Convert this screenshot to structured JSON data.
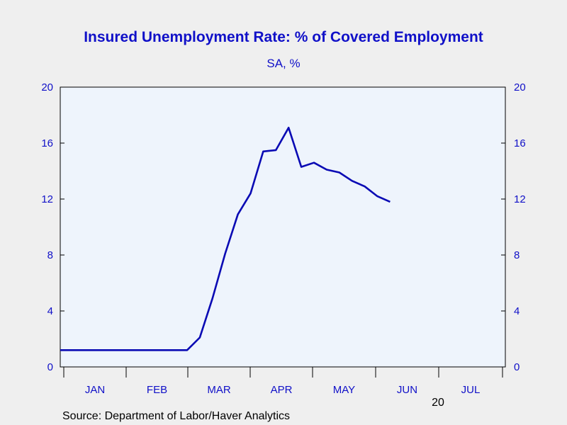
{
  "chart_data": {
    "type": "line",
    "title": "Insured Unemployment Rate: % of Covered Employment",
    "subtitle": "SA, %",
    "source": "Source:  Department of Labor/Haver Analytics",
    "year_label": "20",
    "ylim": [
      0,
      20
    ],
    "yticks": [
      0,
      4,
      8,
      12,
      16,
      20
    ],
    "months": [
      "JAN",
      "FEB",
      "MAR",
      "APR",
      "MAY",
      "JUN",
      "JUL"
    ],
    "x_unit": "weeks from start of JAN",
    "grid": false,
    "legend": "none",
    "colors": {
      "line": "#0a0ab4",
      "text": "#1010c8",
      "plot_bg": "#eef4fc",
      "page_bg": "#efefef",
      "axis": "#000000"
    },
    "series": [
      {
        "x": [
          0,
          1,
          2,
          3,
          4,
          5,
          6,
          7,
          8,
          9,
          10,
          11,
          12,
          13,
          14,
          15,
          16,
          17,
          18,
          19,
          20,
          21,
          22,
          23,
          24,
          25,
          26
        ],
        "values": [
          1.2,
          1.2,
          1.2,
          1.2,
          1.2,
          1.2,
          1.2,
          1.2,
          1.2,
          1.2,
          1.2,
          2.1,
          4.9,
          8.1,
          10.9,
          12.4,
          15.4,
          15.5,
          17.1,
          14.3,
          14.6,
          14.1,
          13.9,
          13.3,
          12.9,
          12.2,
          11.8
        ]
      }
    ]
  }
}
